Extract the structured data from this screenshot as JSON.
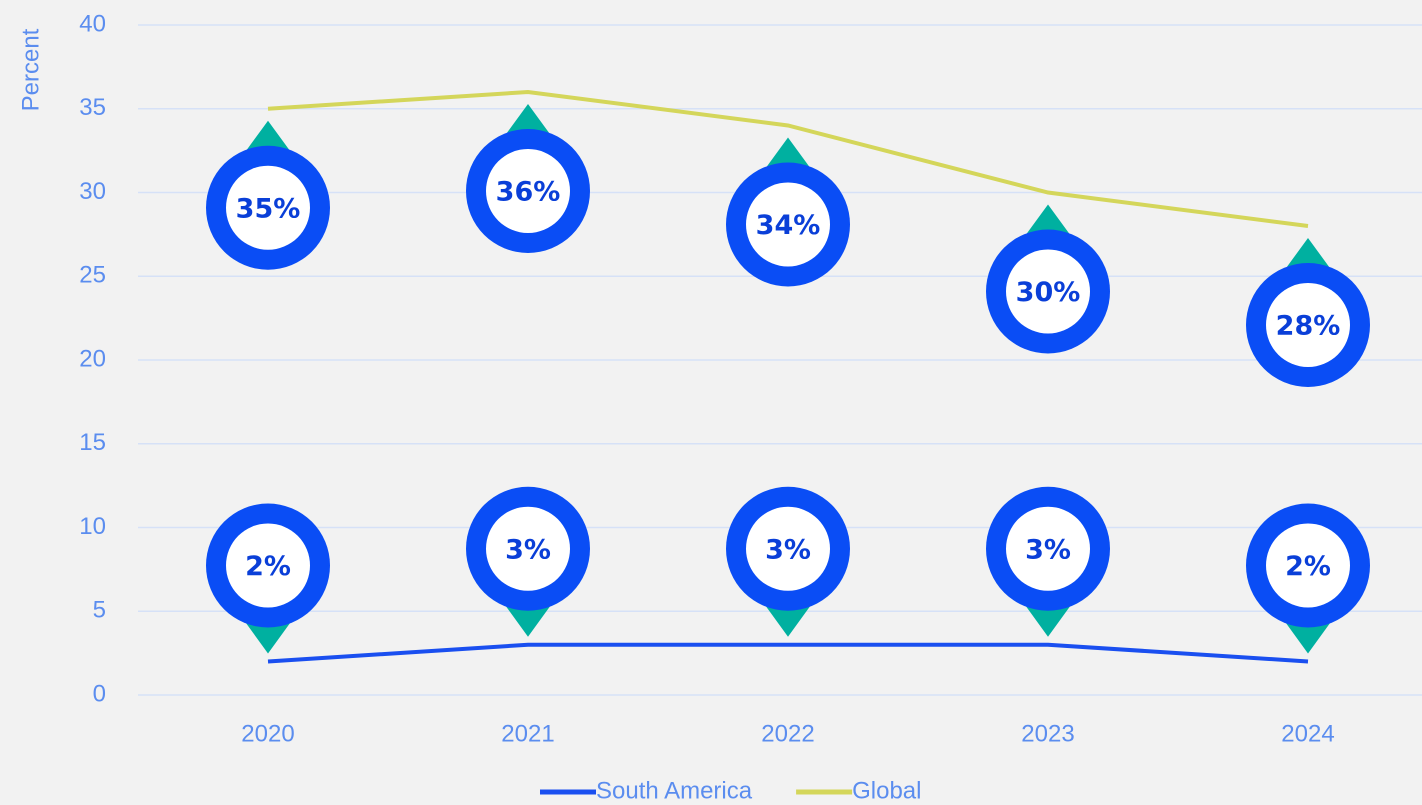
{
  "chart_data": {
    "type": "line",
    "y_label": "Percent",
    "categories": [
      "2020",
      "2021",
      "2022",
      "2023",
      "2024"
    ],
    "series": [
      {
        "name": "South America",
        "color": "#1a4ff0",
        "values": [
          2,
          3,
          3,
          3,
          2
        ],
        "value_labels": [
          "2%",
          "3%",
          "3%",
          "3%",
          "2%"
        ]
      },
      {
        "name": "Global",
        "color": "#d4d65a",
        "values": [
          35,
          36,
          34,
          30,
          28
        ],
        "value_labels": [
          "35%",
          "36%",
          "34%",
          "30%",
          "28%"
        ]
      }
    ],
    "ylim": [
      0,
      40
    ],
    "yticks": [
      0,
      5,
      10,
      15,
      20,
      25,
      30,
      35,
      40
    ],
    "grid": true,
    "legend": "bottom"
  }
}
